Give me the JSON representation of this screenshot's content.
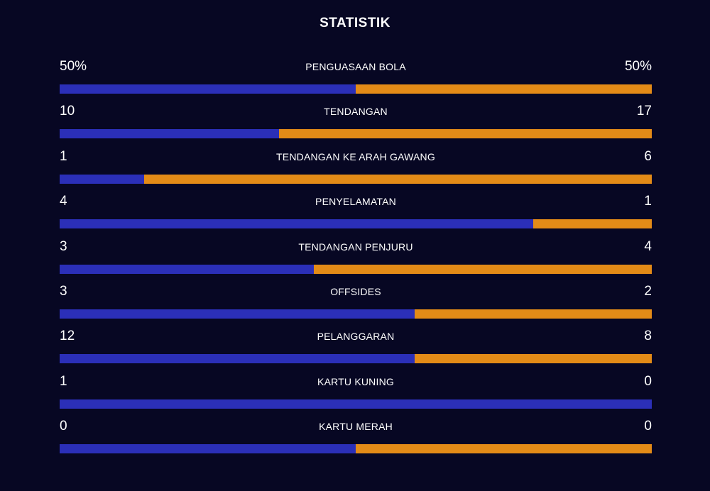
{
  "title": "STATISTIK",
  "colors": {
    "background": "#070723",
    "home_bar": "#2b2fb8",
    "away_bar": "#e38b17",
    "text": "#ffffff"
  },
  "stats": [
    {
      "label": "PENGUASAAN BOLA",
      "home": "50%",
      "away": "50%",
      "home_share": 0.5
    },
    {
      "label": "TENDANGAN",
      "home": "10",
      "away": "17",
      "home_share": 0.37
    },
    {
      "label": "TENDANGAN KE ARAH GAWANG",
      "home": "1",
      "away": "6",
      "home_share": 0.143
    },
    {
      "label": "PENYELAMATAN",
      "home": "4",
      "away": "1",
      "home_share": 0.8
    },
    {
      "label": "TENDANGAN PENJURU",
      "home": "3",
      "away": "4",
      "home_share": 0.429
    },
    {
      "label": "OFFSIDES",
      "home": "3",
      "away": "2",
      "home_share": 0.6
    },
    {
      "label": "PELANGGARAN",
      "home": "12",
      "away": "8",
      "home_share": 0.6
    },
    {
      "label": "KARTU KUNING",
      "home": "1",
      "away": "0",
      "home_share": 1.0
    },
    {
      "label": "KARTU MERAH",
      "home": "0",
      "away": "0",
      "home_share": 0.5
    }
  ]
}
